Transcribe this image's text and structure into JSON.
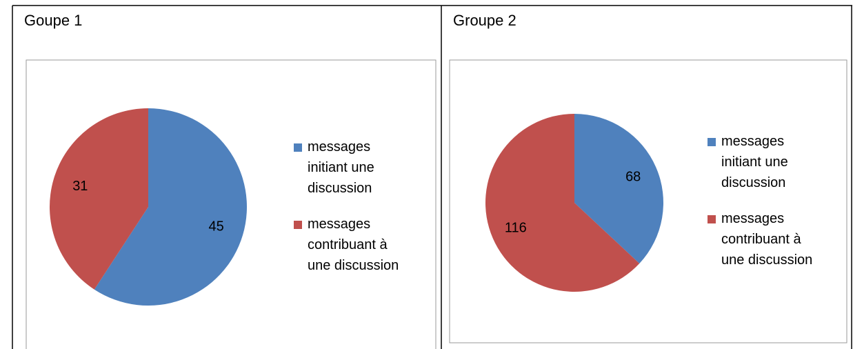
{
  "chart_data": [
    {
      "type": "pie",
      "title": "Goupe 1",
      "categories": [
        "messages initiant une discussion",
        "messages contribuant à une discussion"
      ],
      "values": [
        45,
        31
      ],
      "colors": [
        "#4f81bd",
        "#c0504d"
      ]
    },
    {
      "type": "pie",
      "title": "Groupe 2",
      "categories": [
        "messages initiant une discussion",
        "messages contribuant à une discussion"
      ],
      "values": [
        68,
        116
      ],
      "colors": [
        "#4f81bd",
        "#c0504d"
      ]
    }
  ]
}
